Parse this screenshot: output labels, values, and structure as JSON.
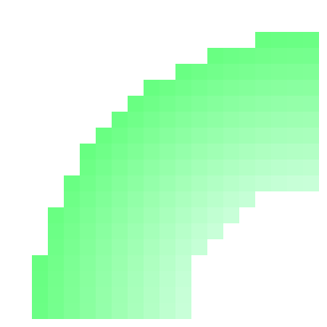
{
  "graphic": {
    "shape": "pixelated quarter-ring arc",
    "outer_color": "#66ff80",
    "inner_color": "#c8ffd8",
    "background": "#ffffff"
  }
}
